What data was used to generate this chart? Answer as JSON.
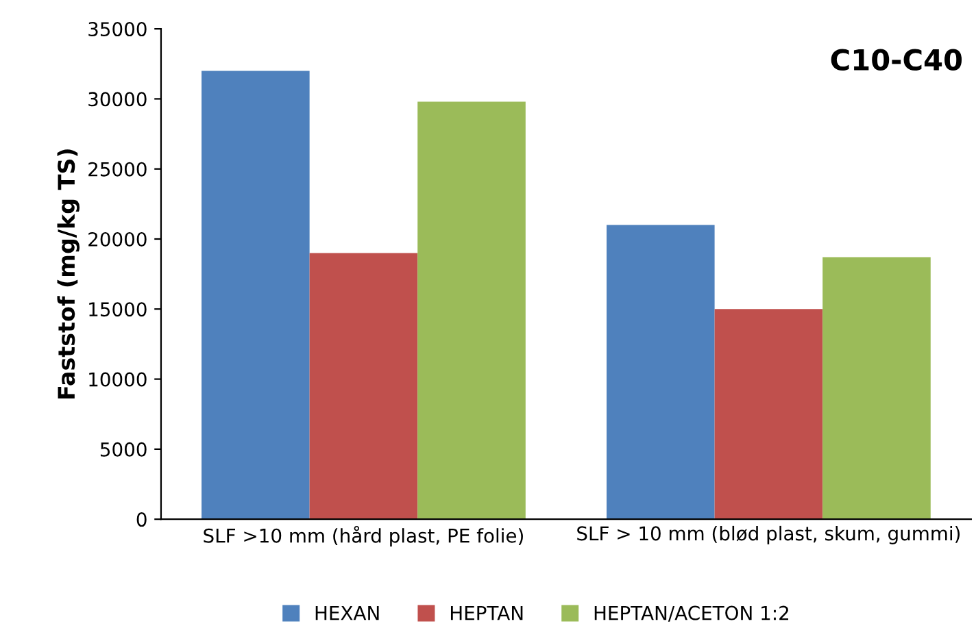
{
  "chart_data": {
    "type": "bar",
    "title": "C10-C40",
    "ylabel": "Faststof (mg/kg TS)",
    "categories": [
      "SLF >10 mm (hård plast, PE folie)",
      "SLF > 10 mm (blød plast, skum, gummi)"
    ],
    "series": [
      {
        "name": "HEXAN",
        "color": "#4f81bd",
        "values": [
          32000,
          21000
        ]
      },
      {
        "name": "HEPTAN",
        "color": "#c0504d",
        "values": [
          19000,
          15000
        ]
      },
      {
        "name": "HEPTAN/ACETON 1:2",
        "color": "#9bbb59",
        "values": [
          29800,
          18700
        ]
      }
    ],
    "ylim": [
      0,
      35000
    ],
    "yticks": [
      0,
      5000,
      10000,
      15000,
      20000,
      25000,
      30000,
      35000
    ],
    "grid": false,
    "legend": "bottom"
  }
}
